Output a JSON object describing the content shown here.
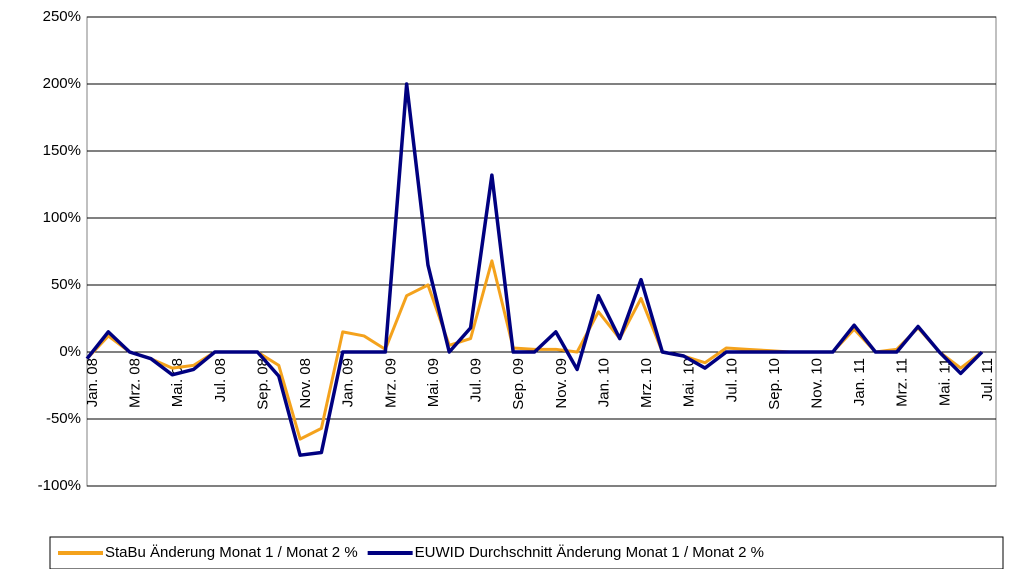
{
  "chart_data": {
    "type": "line",
    "categories": [
      "Jan. 08",
      null,
      "Mrz. 08",
      null,
      "Mai. 08",
      null,
      "Jul. 08",
      null,
      "Sep. 08",
      null,
      "Nov. 08",
      null,
      "Jan. 09",
      null,
      "Mrz. 09",
      null,
      "Mai. 09",
      null,
      "Jul. 09",
      null,
      "Sep. 09",
      null,
      "Nov. 09",
      null,
      "Jan. 10",
      null,
      "Mrz. 10",
      null,
      "Mai. 10",
      null,
      "Jul. 10",
      null,
      "Sep. 10",
      null,
      "Nov. 10",
      null,
      "Jan. 11",
      null,
      "Mrz. 11",
      null,
      "Mai. 11",
      null,
      "Jul. 11"
    ],
    "series": [
      {
        "name": "StaBu Änderung Monat 1 / Monat 2 %",
        "color": "#f4a21c",
        "values": [
          -5,
          12,
          0,
          -5,
          -12,
          -10,
          0,
          0,
          0,
          -10,
          -65,
          -57,
          15,
          12,
          2,
          42,
          50,
          5,
          10,
          68,
          3,
          2,
          2,
          0,
          30,
          10,
          40,
          0,
          -3,
          -8,
          3,
          2,
          1,
          0,
          0,
          0,
          17,
          0,
          2,
          18,
          0,
          -12,
          0
        ]
      },
      {
        "name": "EUWID Durchschnitt Änderung Monat 1 / Monat 2 %",
        "color": "#000080",
        "values": [
          -5,
          15,
          0,
          -5,
          -17,
          -13,
          0,
          0,
          0,
          -18,
          -77,
          -75,
          0,
          0,
          0,
          200,
          65,
          0,
          18,
          132,
          0,
          0,
          15,
          -13,
          42,
          10,
          54,
          0,
          -3,
          -12,
          0,
          0,
          0,
          0,
          0,
          0,
          20,
          0,
          0,
          19,
          0,
          -16,
          0
        ]
      }
    ],
    "ylim": [
      -100,
      250
    ],
    "yticks": [
      {
        "value": -100,
        "label": "-100%"
      },
      {
        "value": -50,
        "label": "-50%"
      },
      {
        "value": 0,
        "label": "0%"
      },
      {
        "value": 50,
        "label": "50%"
      },
      {
        "value": 100,
        "label": "100%"
      },
      {
        "value": 150,
        "label": "150%"
      },
      {
        "value": 200,
        "label": "200%"
      },
      {
        "value": 250,
        "label": "250%"
      }
    ],
    "grid": true
  }
}
